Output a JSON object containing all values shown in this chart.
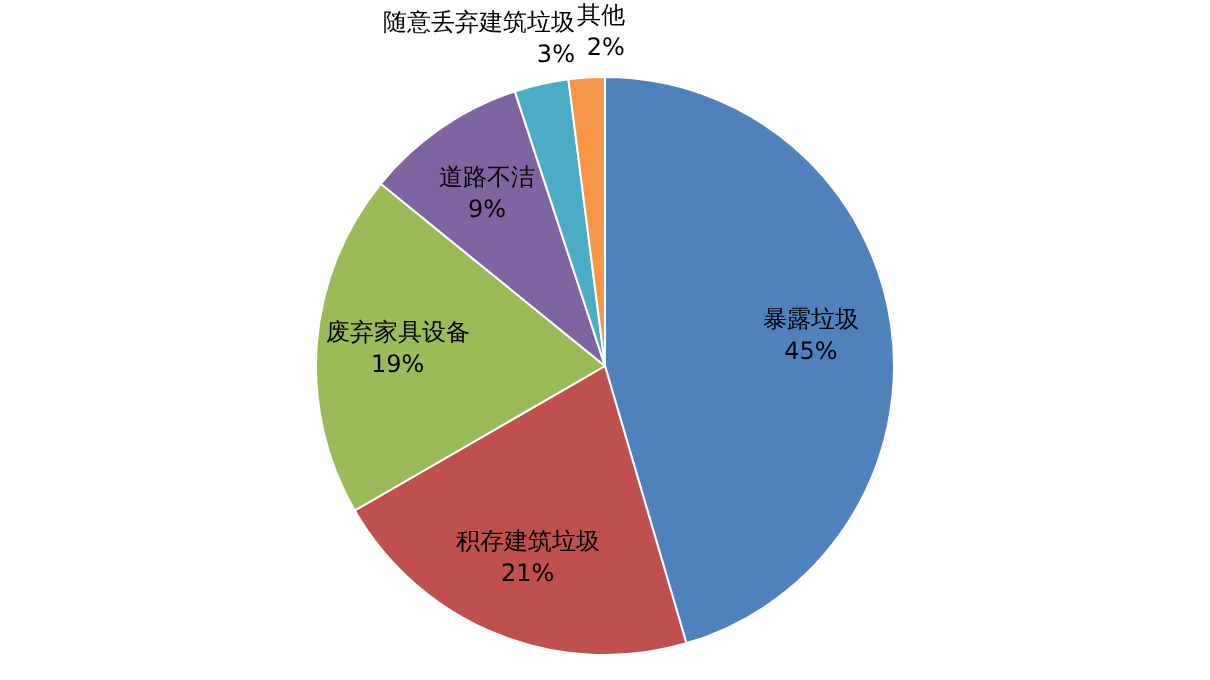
{
  "chart_data": {
    "type": "pie",
    "categories": [
      "暴露垃圾",
      "积存建筑垃圾",
      "废弃家具设备",
      "道路不洁",
      "随意丢弃建筑垃圾",
      "其他"
    ],
    "values": [
      45,
      21,
      19,
      9,
      3,
      2
    ],
    "value_labels": [
      "45%",
      "21%",
      "19%",
      "9%",
      "3%",
      "2%"
    ],
    "colors": [
      "#4f81bd",
      "#c0504d",
      "#9bbb59",
      "#8064a2",
      "#4bacc6",
      "#f79646"
    ],
    "legend": false
  }
}
